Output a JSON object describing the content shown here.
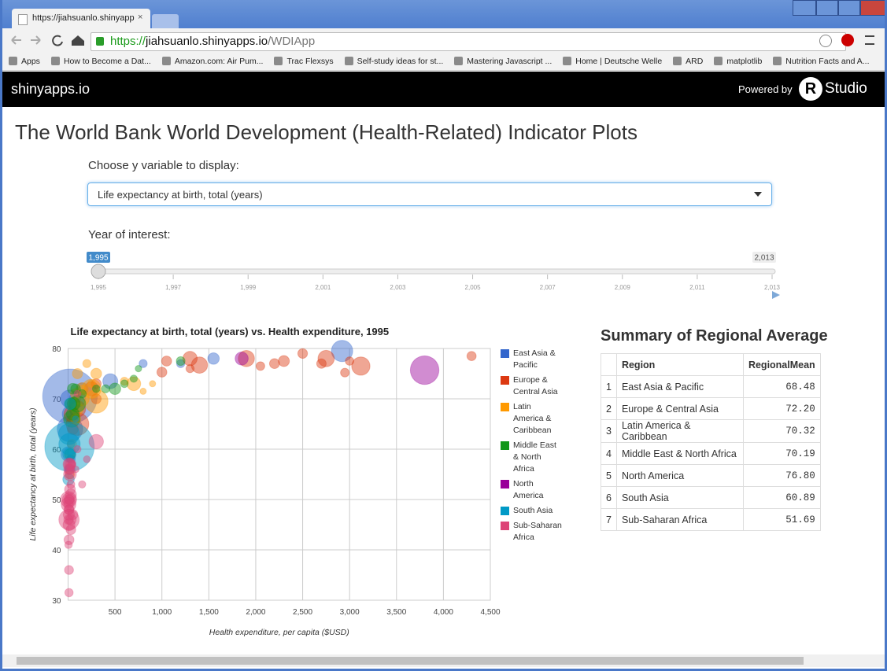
{
  "browser": {
    "tab_title": "https://jiahsuanlo.shinyapps",
    "url_scheme": "https://",
    "url_host": "jiahsuanlo.shinyapps.io",
    "url_path": "/WDIApp",
    "bookmarks": [
      "Apps",
      "How to Become a Dat...",
      "Amazon.com: Air Pum...",
      "Trac Flexsys",
      "Self-study ideas for st...",
      "Mastering Javascript ...",
      "Home | Deutsche Welle",
      "ARD",
      "matplotlib",
      "Nutrition Facts and A..."
    ]
  },
  "header": {
    "brand": "shinyapps.io",
    "powered_by": "Powered by",
    "r_logo": "R",
    "studio": "Studio"
  },
  "app": {
    "title": "The World Bank World Development (Health-Related) Indicator Plots",
    "y_label": "Choose y variable to display:",
    "y_selected": "Life expectancy at birth, total (years)",
    "year_label": "Year of interest:",
    "slider": {
      "min": 1995,
      "max": 2013,
      "value": {
        "value": 1995,
        "label": "1,995"
      },
      "max_label": "2,013",
      "ticks": [
        {
          "value": 1995,
          "label": "1,995"
        },
        {
          "value": 1997,
          "label": "1,997"
        },
        {
          "value": 1999,
          "label": "1,999"
        },
        {
          "value": 2001,
          "label": "2,001"
        },
        {
          "value": 2003,
          "label": "2,003"
        },
        {
          "value": 2005,
          "label": "2,005"
        },
        {
          "value": 2007,
          "label": "2,007"
        },
        {
          "value": 2009,
          "label": "2,009"
        },
        {
          "value": 2011,
          "label": "2,011"
        },
        {
          "value": 2013,
          "label": "2,013"
        }
      ]
    }
  },
  "chart_data": {
    "type": "scatter",
    "title": "Life expectancy at birth, total (years) vs. Health expenditure, 1995",
    "x_label": "Health expenditure, per capita ($USD)",
    "y_label": "Life expectancy at birth, total (years)",
    "xlim": [
      0,
      4500
    ],
    "ylim": [
      30,
      80
    ],
    "xticks": [
      500,
      {
        "value": 1000,
        "label": "1,000"
      },
      {
        "value": 1500,
        "label": "1,500"
      },
      {
        "value": 2000,
        "label": "2,000"
      },
      {
        "value": 2500,
        "label": "2,500"
      },
      {
        "value": 3000,
        "label": "3,000"
      },
      {
        "value": 3500,
        "label": "3,500"
      },
      {
        "value": 4000,
        "label": "4,000"
      },
      {
        "value": 4500,
        "label": "4,500"
      }
    ],
    "yticks": [
      30,
      40,
      50,
      60,
      70,
      80
    ],
    "grid": true,
    "legend": "right",
    "series": [
      {
        "name": "East Asia & Pacific",
        "color": "#3366cc",
        "x": [
          20,
          2920,
          1550,
          1200,
          450,
          150,
          100,
          30,
          20,
          15,
          800,
          30,
          30,
          100,
          20,
          10,
          5
        ],
        "values": [
          70.5,
          79.5,
          78,
          77,
          73.5,
          72,
          70,
          67,
          64,
          70,
          77,
          61,
          58,
          70,
          56,
          56,
          59
        ],
        "sizes": [
          1200,
          125,
          18,
          3.7,
          45,
          20,
          60,
          70,
          200,
          75,
          3.5,
          2.3,
          5,
          0.8,
          11,
          5,
          45
        ]
      },
      {
        "name": "Europe & Central Asia",
        "color": "#dc3912",
        "x": [
          3120,
          2750,
          1400,
          1900,
          1300,
          4300,
          3000,
          2500,
          2950,
          2700,
          2300,
          2200,
          2050,
          1000,
          1050,
          100,
          40,
          250,
          100,
          50,
          60,
          300,
          300,
          1300
        ],
        "values": [
          76.5,
          78,
          76.7,
          78,
          78,
          78.5,
          77.5,
          79,
          75.2,
          77,
          77.5,
          77,
          76.5,
          75.3,
          77.5,
          65,
          67,
          72,
          68,
          64,
          69,
          73,
          70,
          76
        ],
        "sizes": [
          82,
          59,
          58,
          57,
          39,
          7,
          4.4,
          8.8,
          5.2,
          8,
          15,
          10,
          5,
          10,
          10.6,
          148,
          51,
          38,
          59,
          15,
          22,
          10,
          10,
          3.6
        ]
      },
      {
        "name": "Latin America & Caribbean",
        "color": "#ff9900",
        "x": [
          300,
          250,
          700,
          300,
          150,
          100,
          150,
          100,
          600,
          200,
          20,
          40,
          80,
          80,
          800,
          250,
          150,
          900
        ],
        "values": [
          69.5,
          72,
          73,
          75,
          70,
          68,
          72,
          75,
          73.5,
          77,
          55,
          61,
          66,
          71,
          71.5,
          73,
          72,
          73
        ],
        "sizes": [
          162,
          93,
          35,
          14,
          37,
          24,
          22,
          11,
          3.2,
          3.5,
          7.8,
          7.5,
          10,
          11.5,
          0.3,
          2.7,
          2.5,
          0.3
        ]
      },
      {
        "name": "Middle East & North Africa",
        "color": "#109618",
        "x": [
          1200,
          700,
          500,
          100,
          40,
          50,
          60,
          80,
          150,
          400,
          600,
          20,
          30,
          300,
          50,
          750
        ],
        "values": [
          77.5,
          74,
          72,
          69,
          66,
          67,
          69,
          72,
          71,
          72,
          73,
          59,
          69,
          72,
          72,
          76
        ],
        "sizes": [
          5.5,
          1.6,
          18,
          60,
          62,
          26,
          28,
          9,
          4,
          3.6,
          2.4,
          15,
          20,
          2.2,
          14,
          0.5
        ]
      },
      {
        "name": "North America",
        "color": "#990099",
        "x": [
          3800,
          1850
        ],
        "values": [
          75.7,
          78
        ],
        "sizes": [
          266,
          29
        ]
      },
      {
        "name": "South Asia",
        "color": "#0099c6",
        "x": [
          15,
          15,
          10,
          8,
          20,
          5,
          20,
          80
        ],
        "values": [
          60.5,
          61,
          63,
          59,
          69,
          54,
          58,
          66
        ],
        "sizes": [
          960,
          125,
          120,
          22,
          18,
          18,
          0.5,
          0.25
        ]
      },
      {
        "name": "Sub-Saharan Africa",
        "color": "#dd4477",
        "x": [
          10,
          5,
          300,
          15,
          10,
          10,
          5,
          15,
          10,
          100,
          150,
          50,
          30,
          10,
          10,
          5,
          10,
          25,
          20,
          30,
          8,
          10,
          200,
          100,
          20,
          30,
          5,
          10,
          10,
          15,
          15,
          30,
          40,
          80,
          5
        ],
        "values": [
          46,
          50,
          61.5,
          57,
          50,
          45,
          49,
          57,
          31.5,
          71,
          53,
          47,
          44,
          42,
          36,
          49,
          48,
          57,
          52,
          46,
          47,
          56,
          58,
          60,
          55,
          51,
          41,
          48,
          50,
          55,
          50,
          53,
          57,
          56,
          46
        ],
        "sizes": [
          110,
          57,
          40,
          28,
          30,
          21,
          42,
          17,
          4,
          1.1,
          1.6,
          11,
          9,
          10,
          6,
          9,
          10,
          9,
          14,
          13,
          16,
          13,
          1,
          1.6,
          27,
          15,
          2,
          7,
          10,
          6,
          7,
          3,
          1.8,
          1,
          8
        ]
      }
    ]
  },
  "summary": {
    "title": "Summary of Regional Average",
    "columns": [
      "Region",
      "RegionalMean"
    ],
    "rows": [
      [
        1,
        "East Asia & Pacific",
        "68.48"
      ],
      [
        2,
        "Europe & Central Asia",
        "72.20"
      ],
      [
        3,
        "Latin America & Caribbean",
        "70.32"
      ],
      [
        4,
        "Middle East & North Africa",
        "70.19"
      ],
      [
        5,
        "North America",
        "76.80"
      ],
      [
        6,
        "South Asia",
        "60.89"
      ],
      [
        7,
        "Sub-Saharan Africa",
        "51.69"
      ]
    ]
  }
}
